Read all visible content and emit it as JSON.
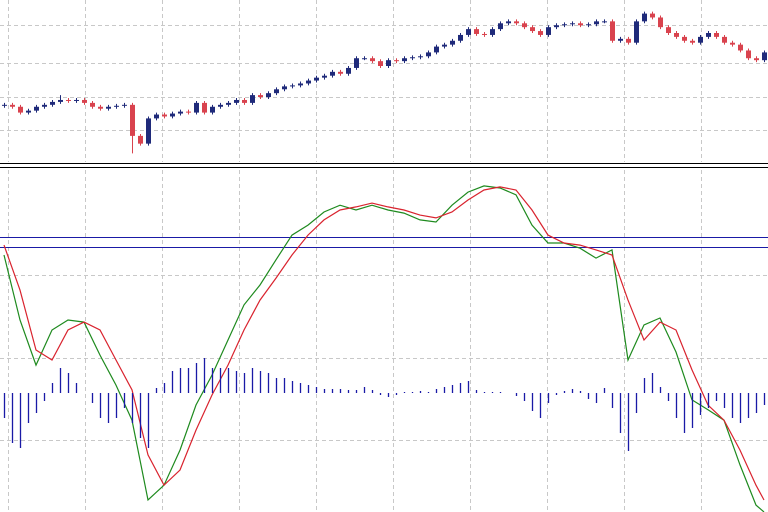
{
  "chart_data": [
    {
      "type": "candlestick",
      "up_color": "#1f2a7a",
      "down_color": "#d9434e",
      "ylim": [
        0,
        170
      ],
      "grid": true,
      "open": [
        61,
        62,
        60,
        54,
        56,
        60,
        62,
        65,
        67,
        66,
        67,
        64,
        60,
        58,
        60,
        61,
        62,
        30,
        22,
        48,
        52,
        50,
        53,
        55,
        54,
        64,
        54,
        60,
        62,
        64,
        67,
        64,
        72,
        70,
        74,
        78,
        81,
        82,
        84,
        87,
        90,
        92,
        96,
        94,
        100,
        110,
        110,
        107,
        102,
        108,
        107,
        110,
        111,
        112,
        116,
        122,
        124,
        128,
        134,
        140,
        135,
        134,
        140,
        146,
        148,
        146,
        142,
        138,
        134,
        142,
        144,
        145,
        146,
        144,
        145,
        148,
        148,
        128,
        130,
        126,
        148,
        156,
        152,
        142,
        136,
        132,
        128,
        126,
        132,
        136,
        132,
        126,
        124,
        118,
        110,
        108
      ],
      "high": [
        64,
        64,
        62,
        58,
        62,
        64,
        67,
        72,
        69,
        69,
        69,
        66,
        62,
        62,
        63,
        64,
        64,
        32,
        50,
        54,
        54,
        55,
        57,
        57,
        66,
        66,
        62,
        64,
        66,
        69,
        69,
        74,
        74,
        76,
        80,
        83,
        84,
        86,
        89,
        92,
        94,
        98,
        98,
        102,
        112,
        112,
        112,
        109,
        110,
        110,
        112,
        113,
        114,
        118,
        124,
        126,
        130,
        136,
        142,
        142,
        137,
        142,
        148,
        150,
        150,
        148,
        144,
        140,
        144,
        146,
        147,
        148,
        148,
        147,
        150,
        150,
        150,
        132,
        132,
        150,
        158,
        158,
        154,
        144,
        138,
        134,
        130,
        134,
        138,
        138,
        134,
        128,
        126,
        120,
        112,
        118
      ],
      "low": [
        59,
        58,
        52,
        52,
        54,
        58,
        60,
        63,
        64,
        64,
        62,
        58,
        56,
        56,
        58,
        59,
        12,
        20,
        20,
        46,
        48,
        48,
        51,
        52,
        52,
        52,
        52,
        58,
        60,
        62,
        62,
        62,
        68,
        68,
        72,
        76,
        79,
        80,
        82,
        85,
        88,
        90,
        92,
        92,
        98,
        108,
        105,
        100,
        100,
        105,
        105,
        108,
        109,
        110,
        114,
        120,
        122,
        126,
        132,
        133,
        132,
        132,
        138,
        144,
        144,
        140,
        136,
        132,
        132,
        140,
        142,
        143,
        142,
        142,
        143,
        146,
        126,
        126,
        124,
        124,
        146,
        150,
        140,
        134,
        130,
        126,
        124,
        124,
        130,
        130,
        124,
        122,
        116,
        108,
        106,
        106
      ],
      "close": [
        62,
        60,
        54,
        56,
        60,
        62,
        65,
        67,
        66,
        67,
        64,
        60,
        58,
        60,
        61,
        62,
        30,
        22,
        48,
        52,
        50,
        53,
        55,
        54,
        64,
        54,
        60,
        62,
        64,
        67,
        64,
        72,
        70,
        74,
        78,
        81,
        82,
        84,
        87,
        90,
        92,
        96,
        94,
        100,
        110,
        110,
        107,
        102,
        108,
        107,
        110,
        111,
        112,
        116,
        122,
        124,
        128,
        134,
        140,
        135,
        134,
        140,
        146,
        148,
        146,
        142,
        138,
        134,
        142,
        144,
        145,
        146,
        144,
        145,
        148,
        148,
        128,
        130,
        126,
        148,
        156,
        152,
        142,
        136,
        132,
        128,
        126,
        132,
        136,
        132,
        126,
        124,
        118,
        110,
        108,
        116
      ]
    },
    {
      "type": "line",
      "xlim": [
        -0.5,
        95.5
      ],
      "ylim": [
        0,
        100
      ],
      "grid": true,
      "levels": [
        80,
        77
      ],
      "level_color": "#1a1aa6",
      "x": [
        0,
        2,
        4,
        6,
        8,
        10,
        12,
        14,
        16,
        18,
        20,
        22,
        24,
        26,
        28,
        30,
        32,
        34,
        36,
        38,
        40,
        42,
        44,
        46,
        48,
        50,
        52,
        54,
        56,
        58,
        60,
        62,
        64,
        66,
        68,
        70,
        72,
        74,
        76,
        78,
        80,
        82,
        84,
        86,
        88,
        90,
        92,
        94,
        95
      ],
      "series": [
        {
          "color": "#1e8a1e",
          "values": [
            74.7,
            55.8,
            42.7,
            52.9,
            55.8,
            55.2,
            45.6,
            36.9,
            26.7,
            3.5,
            7.8,
            18.0,
            31.1,
            39.8,
            50.0,
            60.2,
            66.0,
            73.3,
            80.5,
            83.4,
            87.2,
            89.2,
            87.8,
            89.2,
            87.8,
            86.9,
            84.9,
            84.3,
            89.2,
            93.0,
            94.8,
            94.2,
            92.2,
            83.4,
            78.2,
            78.2,
            76.7,
            73.8,
            76.2,
            44.2,
            54.4,
            56.4,
            46.5,
            32.6,
            29.7,
            26.7,
            13.7,
            2.0,
            0
          ]
        },
        {
          "color": "#d9232e",
          "values": [
            77.6,
            64.5,
            47.1,
            44.2,
            52.9,
            55.2,
            52.9,
            44.2,
            35.5,
            16.6,
            7.8,
            12.2,
            23.8,
            34.0,
            42.7,
            52.9,
            61.6,
            68.0,
            74.7,
            80.5,
            84.9,
            87.8,
            88.7,
            89.8,
            88.7,
            87.8,
            86.3,
            85.5,
            87.2,
            90.7,
            93.6,
            94.5,
            93.6,
            87.8,
            80.5,
            78.2,
            77.6,
            76.2,
            74.7,
            61.6,
            50.0,
            55.2,
            52.9,
            41.3,
            31.1,
            26.7,
            18.0,
            7.8,
            3.5
          ]
        }
      ]
    },
    {
      "type": "bar",
      "color": "#1a1aa6",
      "ylim": [
        -119,
        225
      ],
      "values": [
        -25,
        -50,
        -55,
        -30,
        -20,
        -8,
        10,
        25,
        20,
        10,
        0,
        -10,
        -25,
        -30,
        -25,
        -15,
        -30,
        -45,
        -55,
        5,
        10,
        22,
        25,
        25,
        30,
        35,
        25,
        25,
        25,
        22,
        20,
        25,
        22,
        20,
        15,
        15,
        12,
        10,
        8,
        6,
        4,
        4,
        4,
        3,
        3,
        6,
        3,
        -2,
        -4,
        -2,
        1,
        1,
        2,
        1,
        4,
        6,
        8,
        10,
        12,
        3,
        1,
        1,
        1,
        0,
        -3,
        -8,
        -18,
        -25,
        -10,
        -2,
        2,
        4,
        2,
        -6,
        -10,
        5,
        -15,
        -40,
        -58,
        -20,
        15,
        20,
        6,
        -8,
        -25,
        -40,
        -35,
        -22,
        -15,
        -8,
        -15,
        -25,
        -30,
        -25,
        -20,
        -12
      ]
    }
  ]
}
